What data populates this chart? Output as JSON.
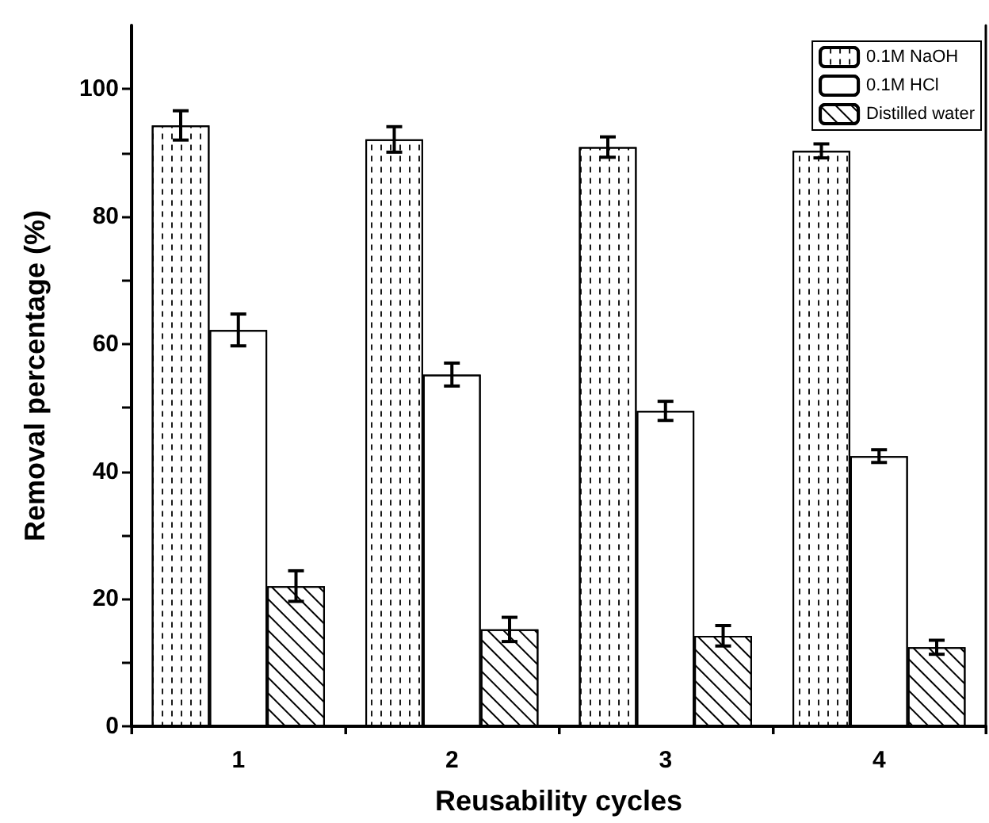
{
  "chart_data": {
    "type": "bar",
    "xlabel": "Reusability cycles",
    "ylabel": "Removal percentage (%)",
    "categories": [
      "1",
      "2",
      "3",
      "4"
    ],
    "series": [
      {
        "name": "0.1M NaOH",
        "color": "#ffffff",
        "values": [
          94.3,
          92.1,
          90.9,
          90.3
        ],
        "errors": [
          2.3,
          2.0,
          1.6,
          1.1
        ]
      },
      {
        "name": "0.1M HCl",
        "color": "#ffffff",
        "values": [
          62.2,
          55.2,
          49.5,
          42.4
        ],
        "errors": [
          2.5,
          1.8,
          1.5,
          1.0
        ]
      },
      {
        "name": "Distilled water",
        "color": "#ffffff",
        "values": [
          22.0,
          15.2,
          14.2,
          12.4
        ],
        "errors": [
          2.4,
          1.9,
          1.6,
          1.1
        ]
      }
    ],
    "ylim": [
      0,
      110
    ],
    "yticks": [
      0,
      {
        "value": 10,
        "label": null
      },
      20,
      {
        "value": 30,
        "label": null
      },
      40,
      {
        "value": 50,
        "label": null
      },
      60,
      {
        "value": 70,
        "label": null
      },
      80,
      {
        "value": 90,
        "label": null
      },
      100
    ],
    "grid": false,
    "legend": "top right"
  }
}
